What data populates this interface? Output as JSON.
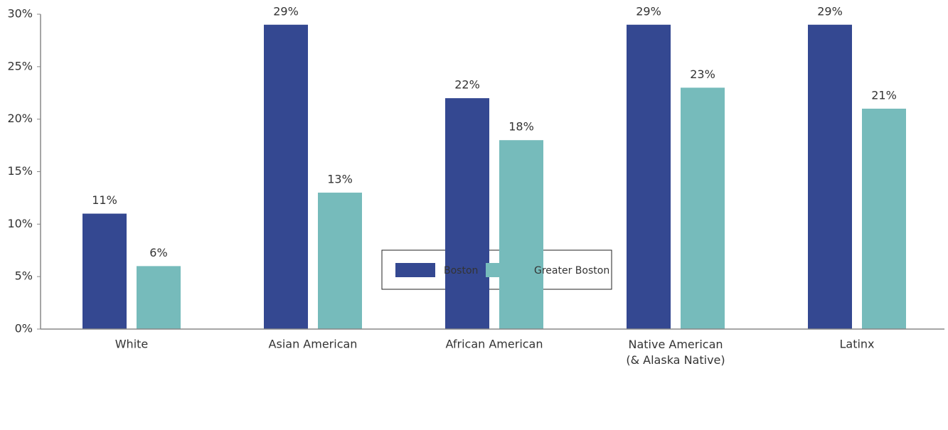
{
  "chart_data": {
    "type": "bar",
    "categories": [
      "White",
      "Asian American",
      "African American",
      "Native American\n(& Alaska Native)",
      "Latinx"
    ],
    "series": [
      {
        "name": "Boston",
        "color": "#344891",
        "values": [
          11,
          29,
          22,
          29,
          29
        ],
        "value_labels": [
          "11%",
          "29%",
          "22%",
          "29%",
          "29%"
        ]
      },
      {
        "name": "Greater Boston",
        "color": "#76bbbb",
        "values": [
          6,
          13,
          18,
          23,
          21
        ],
        "value_labels": [
          "6%",
          "13%",
          "18%",
          "23%",
          "21%"
        ]
      }
    ],
    "ylim": [
      0,
      30
    ],
    "yticks": [
      {
        "value": 0,
        "label": "0%"
      },
      {
        "value": 5,
        "label": "5%"
      },
      {
        "value": 10,
        "label": "10%"
      },
      {
        "value": 15,
        "label": "15%"
      },
      {
        "value": 20,
        "label": "20%"
      },
      {
        "value": 25,
        "label": "25%"
      },
      {
        "value": 30,
        "label": "30%"
      }
    ],
    "grid": false,
    "legend": "bottom"
  }
}
